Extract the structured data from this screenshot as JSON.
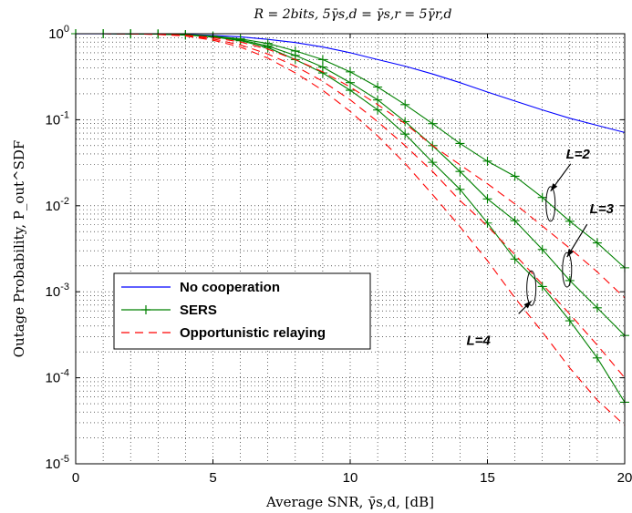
{
  "chart_data": {
    "type": "line",
    "title": "R = 2bits, 5γ̄s,d = γ̄s,r = 5γ̄r,d",
    "xlabel": "Average SNR, γ̄s,d, [dB]",
    "ylabel": "Outage Probability, P_out^SDF",
    "xlim": [
      0,
      20
    ],
    "ylim_log10": [
      -5,
      0
    ],
    "y_scale": "log",
    "grid": true,
    "legend_position": "lower-left",
    "x_ticks": [
      "0",
      "5",
      "10",
      "15",
      "20"
    ],
    "y_ticks": [
      {
        "base": "10",
        "exp": "0"
      },
      {
        "base": "10",
        "exp": "-1"
      },
      {
        "base": "10",
        "exp": "-2"
      },
      {
        "base": "10",
        "exp": "-3"
      },
      {
        "base": "10",
        "exp": "-4"
      },
      {
        "base": "10",
        "exp": "-5"
      }
    ],
    "legend": [
      {
        "label": "No cooperation",
        "style": "solid",
        "color": "#0000ff"
      },
      {
        "label": "SERS",
        "style": "solid-plus",
        "color": "#008000"
      },
      {
        "label": "Opportunistic relaying",
        "style": "dashed",
        "color": "#ff0000"
      }
    ],
    "annotations": [
      {
        "text": "L=2",
        "at": [
          17.3,
          0.0105
        ]
      },
      {
        "text": "L=3",
        "at": [
          17.9,
          0.0018
        ]
      },
      {
        "text": "L=4",
        "at": [
          16.6,
          0.0011
        ]
      }
    ],
    "x": [
      0,
      1,
      2,
      3,
      4,
      5,
      6,
      7,
      8,
      9,
      10,
      11,
      12,
      13,
      14,
      15,
      16,
      17,
      18,
      19,
      20
    ],
    "series": [
      {
        "name": "No cooperation",
        "style": "solid",
        "color": "#0000ff",
        "values": [
          0.998,
          0.997,
          0.995,
          0.99,
          0.98,
          0.955,
          0.92,
          0.86,
          0.79,
          0.7,
          0.6,
          0.5,
          0.42,
          0.34,
          0.27,
          0.21,
          0.165,
          0.13,
          0.104,
          0.086,
          0.071
        ]
      },
      {
        "name": "SERS",
        "group": "L=2",
        "style": "solid-plus",
        "color": "#008000",
        "values": [
          1.0,
          1.0,
          0.998,
          0.99,
          0.975,
          0.94,
          0.87,
          0.77,
          0.63,
          0.5,
          0.36,
          0.24,
          0.15,
          0.09,
          0.053,
          0.033,
          0.022,
          0.0125,
          0.0066,
          0.0037,
          0.0019
        ]
      },
      {
        "name": "SERS",
        "group": "L=3",
        "style": "solid-plus",
        "color": "#008000",
        "values": [
          1.0,
          1.0,
          0.998,
          0.99,
          0.97,
          0.93,
          0.85,
          0.72,
          0.56,
          0.41,
          0.27,
          0.17,
          0.095,
          0.05,
          0.025,
          0.012,
          0.0067,
          0.0031,
          0.00135,
          0.00065,
          0.00031
        ]
      },
      {
        "name": "SERS",
        "group": "L=4",
        "style": "solid-plus",
        "color": "#008000",
        "values": [
          1.0,
          1.0,
          0.998,
          0.99,
          0.965,
          0.92,
          0.83,
          0.69,
          0.5,
          0.35,
          0.22,
          0.13,
          0.068,
          0.032,
          0.0155,
          0.0063,
          0.0024,
          0.00115,
          0.00046,
          0.00017,
          5.2e-05
        ]
      },
      {
        "name": "Opportunistic relaying",
        "group": "L=2",
        "style": "dashed",
        "color": "#ff0000",
        "values": [
          1.0,
          1.0,
          0.997,
          0.985,
          0.96,
          0.9,
          0.8,
          0.66,
          0.5,
          0.36,
          0.24,
          0.15,
          0.09,
          0.05,
          0.03,
          0.018,
          0.0105,
          0.0058,
          0.0032,
          0.0017,
          0.00085
        ]
      },
      {
        "name": "Opportunistic relaying",
        "group": "L=3",
        "style": "dashed",
        "color": "#ff0000",
        "values": [
          1.0,
          1.0,
          0.997,
          0.983,
          0.95,
          0.87,
          0.74,
          0.58,
          0.42,
          0.28,
          0.17,
          0.095,
          0.05,
          0.025,
          0.0115,
          0.0058,
          0.0027,
          0.00122,
          0.00055,
          0.00024,
          0.0001
        ]
      },
      {
        "name": "Opportunistic relaying",
        "group": "L=4",
        "style": "dashed",
        "color": "#ff0000",
        "values": [
          1.0,
          1.0,
          0.997,
          0.98,
          0.94,
          0.84,
          0.7,
          0.52,
          0.35,
          0.22,
          0.125,
          0.065,
          0.031,
          0.0135,
          0.0057,
          0.0023,
          0.00085,
          0.00034,
          0.00013,
          5.5e-05,
          2.8e-05
        ]
      }
    ]
  }
}
